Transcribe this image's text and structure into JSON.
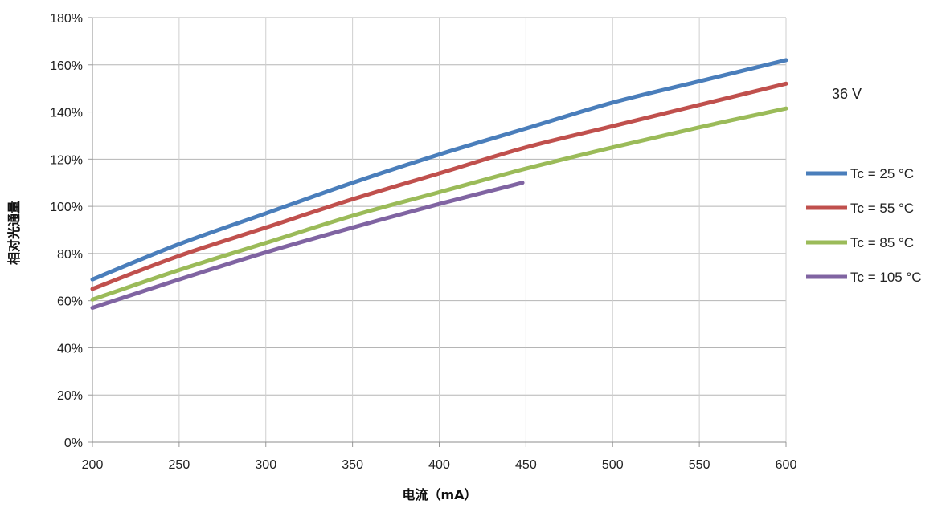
{
  "chart_data": {
    "type": "line",
    "title": "",
    "xlabel": "电流（mA）",
    "ylabel": "相对光通量",
    "xlim": [
      200,
      600
    ],
    "ylim": [
      0,
      180
    ],
    "x_ticks": [
      "200",
      "250",
      "300",
      "350",
      "400",
      "450",
      "500",
      "550",
      "600"
    ],
    "y_ticks": [
      "0%",
      "20%",
      "40%",
      "60%",
      "80%",
      "100%",
      "120%",
      "140%",
      "160%",
      "180%"
    ],
    "grid": true,
    "legend_position": "right",
    "annotation": "36 V",
    "series": [
      {
        "name": "Tc = 25 °C",
        "color": "#4a7ebb",
        "x": [
          200,
          250,
          300,
          350,
          400,
          450,
          500,
          550,
          600
        ],
        "y": [
          69,
          84,
          97,
          110,
          122,
          133,
          144,
          153,
          162
        ]
      },
      {
        "name": "Tc = 55 °C",
        "color": "#c0504d",
        "x": [
          200,
          250,
          300,
          350,
          400,
          450,
          500,
          550,
          600
        ],
        "y": [
          65,
          79,
          91,
          103,
          114,
          125,
          134,
          143,
          152
        ]
      },
      {
        "name": "Tc = 85 °C",
        "color": "#9bbb59",
        "x": [
          200,
          250,
          300,
          350,
          400,
          450,
          500,
          550,
          600
        ],
        "y": [
          60.5,
          73,
          84.5,
          96,
          106,
          116,
          125,
          133.5,
          141.5
        ]
      },
      {
        "name": "Tc = 105 °C",
        "color": "#8064a2",
        "x": [
          200,
          250,
          300,
          350,
          400,
          448
        ],
        "y": [
          57,
          69,
          80.5,
          91,
          101,
          110
        ]
      }
    ]
  }
}
